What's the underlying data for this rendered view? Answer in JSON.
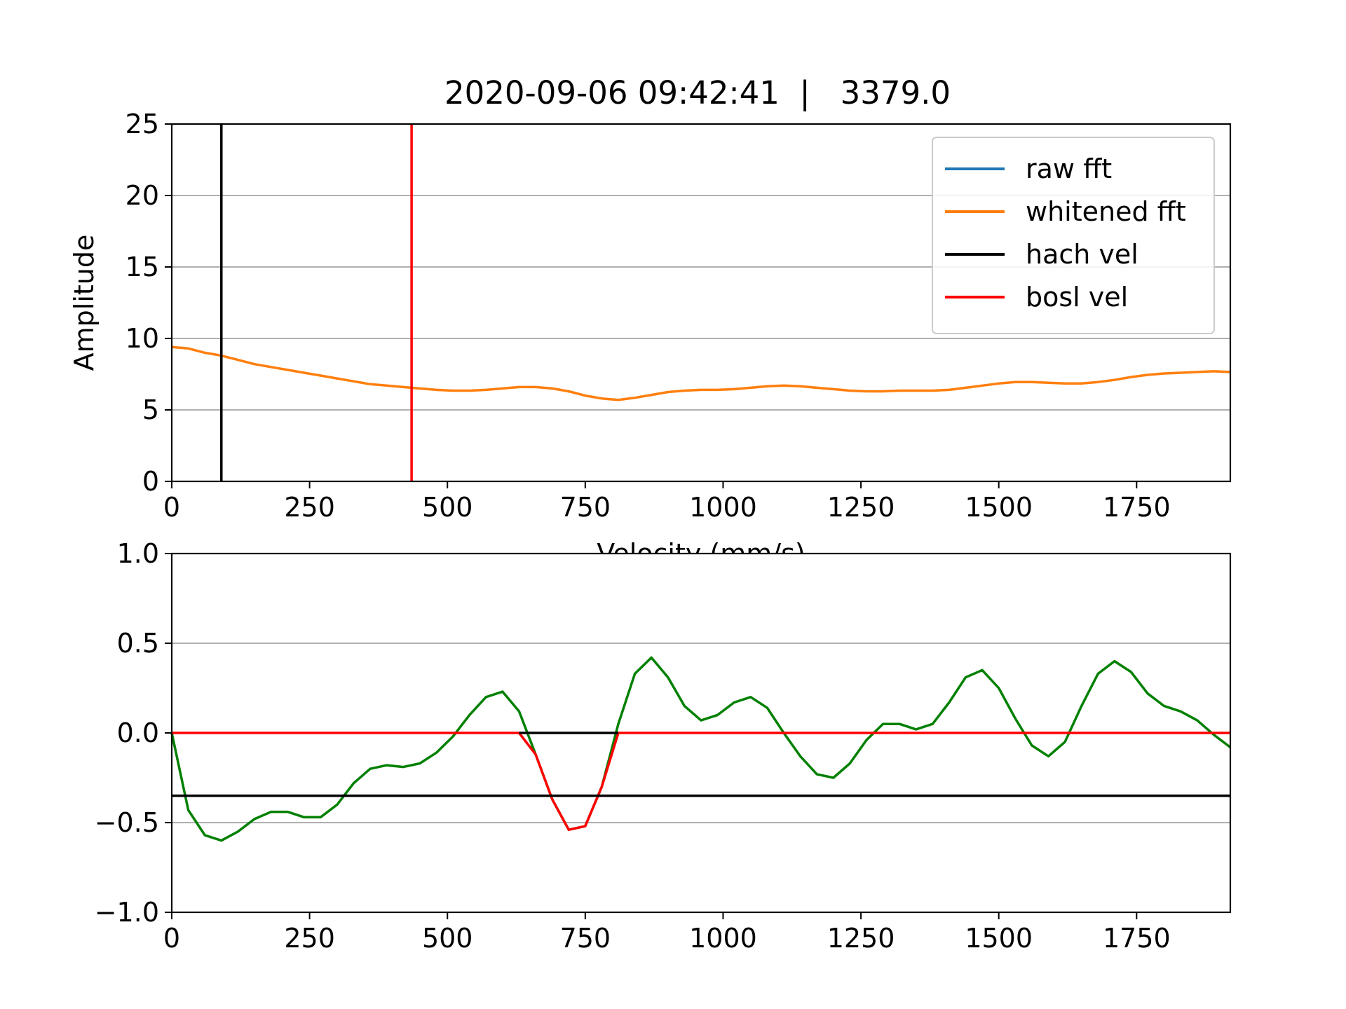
{
  "figure": {
    "title": "2020-09-06 09:42:41  |   3379.0"
  },
  "chart_data": [
    {
      "type": "line",
      "title": "2020-09-06 09:42:41  |   3379.0",
      "xlabel": "Velocity (mm/s)",
      "ylabel": "Amplitude",
      "xlim": [
        0,
        1920
      ],
      "ylim": [
        0,
        25
      ],
      "xticks": [
        "0",
        "250",
        "500",
        "750",
        "1000",
        "1250",
        "1500",
        "1750"
      ],
      "yticks": [
        "0",
        "5",
        "10",
        "15",
        "20",
        "25"
      ],
      "grid": "y",
      "legend": "top-right",
      "series": [
        {
          "name": "raw fft",
          "color": "#1f77b4",
          "x": [],
          "y": []
        },
        {
          "name": "whitened fft",
          "color": "#ff7f0e",
          "x": [
            0,
            30,
            60,
            90,
            120,
            150,
            180,
            210,
            240,
            270,
            300,
            330,
            360,
            390,
            420,
            450,
            480,
            510,
            540,
            570,
            600,
            630,
            660,
            690,
            720,
            750,
            780,
            810,
            840,
            870,
            900,
            930,
            960,
            990,
            1020,
            1050,
            1080,
            1110,
            1140,
            1170,
            1200,
            1230,
            1260,
            1290,
            1320,
            1350,
            1380,
            1410,
            1440,
            1470,
            1500,
            1530,
            1560,
            1590,
            1620,
            1650,
            1680,
            1710,
            1740,
            1770,
            1800,
            1830,
            1860,
            1890,
            1920
          ],
          "y": [
            9.4,
            9.3,
            9.0,
            8.8,
            8.5,
            8.2,
            8.0,
            7.8,
            7.6,
            7.4,
            7.2,
            7.0,
            6.8,
            6.7,
            6.6,
            6.5,
            6.4,
            6.35,
            6.35,
            6.4,
            6.5,
            6.6,
            6.6,
            6.5,
            6.3,
            6.0,
            5.8,
            5.7,
            5.85,
            6.05,
            6.25,
            6.35,
            6.4,
            6.4,
            6.45,
            6.55,
            6.65,
            6.7,
            6.65,
            6.55,
            6.45,
            6.35,
            6.3,
            6.3,
            6.35,
            6.35,
            6.35,
            6.4,
            6.55,
            6.7,
            6.85,
            6.95,
            6.95,
            6.9,
            6.85,
            6.85,
            6.95,
            7.1,
            7.3,
            7.45,
            7.55,
            7.6,
            7.65,
            7.7,
            7.65
          ]
        },
        {
          "name": "hach vel",
          "color": "#000000",
          "vline": 90
        },
        {
          "name": "bosl vel",
          "color": "#ff0000",
          "vline": 435
        }
      ]
    },
    {
      "type": "line",
      "xlim": [
        0,
        1920
      ],
      "ylim": [
        -1.0,
        1.0
      ],
      "xticks": [
        "0",
        "250",
        "500",
        "750",
        "1000",
        "1250",
        "1500",
        "1750"
      ],
      "yticks": [
        "−1.0",
        "−0.5",
        "0.0",
        "0.5",
        "1.0"
      ],
      "grid": "y",
      "series": [
        {
          "color": "#008000",
          "x": [
            0,
            30,
            60,
            90,
            120,
            150,
            180,
            210,
            240,
            270,
            300,
            330,
            360,
            390,
            420,
            450,
            480,
            510,
            540,
            570,
            600,
            630,
            660,
            690,
            720,
            750,
            780,
            810,
            840,
            870,
            900,
            930,
            960,
            990,
            1020,
            1050,
            1080,
            1110,
            1140,
            1170,
            1200,
            1230,
            1260,
            1290,
            1320,
            1350,
            1380,
            1410,
            1440,
            1470,
            1500,
            1530,
            1560,
            1590,
            1620,
            1650,
            1680,
            1710,
            1740,
            1770,
            1800,
            1830,
            1860,
            1890,
            1920
          ],
          "y": [
            0.0,
            -0.43,
            -0.57,
            -0.6,
            -0.55,
            -0.48,
            -0.44,
            -0.44,
            -0.47,
            -0.47,
            -0.4,
            -0.28,
            -0.2,
            -0.18,
            -0.19,
            -0.17,
            -0.11,
            -0.02,
            0.1,
            0.2,
            0.23,
            0.12,
            -0.12,
            -0.37,
            -0.54,
            -0.52,
            -0.3,
            0.05,
            0.33,
            0.42,
            0.31,
            0.15,
            0.07,
            0.1,
            0.17,
            0.2,
            0.14,
            0.0,
            -0.13,
            -0.23,
            -0.25,
            -0.17,
            -0.04,
            0.05,
            0.05,
            0.02,
            0.05,
            0.17,
            0.31,
            0.35,
            0.25,
            0.08,
            -0.07,
            -0.13,
            -0.05,
            0.15,
            0.33,
            0.4,
            0.34,
            0.22,
            0.15,
            0.12,
            0.07,
            -0.01,
            -0.08
          ]
        },
        {
          "color": "#ff0000",
          "x": [
            0,
            630,
            660,
            690,
            720,
            750,
            780,
            810,
            1920
          ],
          "y": [
            0.0,
            0.0,
            -0.12,
            -0.37,
            -0.54,
            -0.52,
            -0.3,
            0.0,
            0.0
          ]
        },
        {
          "color": "#000000",
          "hline": 0.0,
          "x_extent": [
            630,
            810
          ]
        },
        {
          "color": "#000000",
          "hline": -0.35
        }
      ]
    }
  ]
}
